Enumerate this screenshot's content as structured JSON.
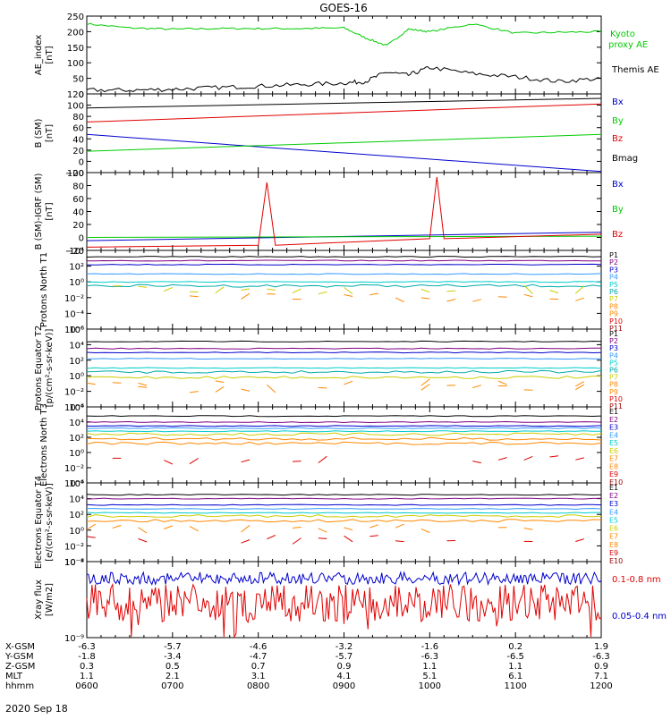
{
  "title": "GOES-16",
  "date_label": "2020 Sep 18",
  "colors": {
    "black": "#000000",
    "red": "#e00000",
    "green": "#00cc00",
    "blue": "#0000cc",
    "cyan": "#00cccc",
    "yellow": "#cccc00",
    "orange": "#ff8800",
    "purple": "#800080",
    "darkred": "#990000",
    "lightblue": "#3399ff",
    "teal": "#00aaaa"
  },
  "xaxis": {
    "rows": [
      {
        "label": "X-GSM",
        "values": [
          "-6.3",
          "-5.7",
          "-4.6",
          "-3.2",
          "-1.6",
          "0.2",
          "1.9"
        ]
      },
      {
        "label": "Y-GSM",
        "values": [
          "-1.8",
          "-3.4",
          "-4.7",
          "-5.7",
          "-6.3",
          "-6.5",
          "-6.3"
        ]
      },
      {
        "label": "Z-GSM",
        "values": [
          "0.3",
          "0.5",
          "0.7",
          "0.9",
          "1.1",
          "1.1",
          "0.9"
        ]
      },
      {
        "label": "MLT",
        "values": [
          "1.1",
          "2.1",
          "3.1",
          "4.1",
          "5.1",
          "6.1",
          "7.1"
        ]
      },
      {
        "label": "hhmm",
        "values": [
          "0600",
          "0700",
          "0800",
          "0900",
          "1000",
          "1100",
          "1200"
        ]
      }
    ]
  },
  "chart_data": [
    {
      "type": "line",
      "ylabel": "AE_index [nT]",
      "ylim": [
        0,
        250
      ],
      "yticks": [
        "0",
        "50",
        "100",
        "150",
        "200",
        "250"
      ],
      "x_range": [
        "0600",
        "1200"
      ],
      "series": [
        {
          "name": "Kyoto proxy AE",
          "color": "#00cc00",
          "x": [
            "0600",
            "0630",
            "0700",
            "0730",
            "0800",
            "0830",
            "0900",
            "0915",
            "0930",
            "0945",
            "1000",
            "1030",
            "1100",
            "1130",
            "1200"
          ],
          "values": [
            225,
            212,
            208,
            210,
            210,
            210,
            212,
            180,
            155,
            208,
            200,
            225,
            195,
            198,
            200
          ]
        },
        {
          "name": "Themis AE",
          "color": "#000000",
          "x": [
            "0600",
            "0630",
            "0700",
            "0730",
            "0800",
            "0830",
            "0900",
            "0915",
            "0930",
            "0945",
            "1000",
            "1030",
            "1100",
            "1130",
            "1200"
          ],
          "values": [
            12,
            12,
            15,
            20,
            25,
            30,
            35,
            40,
            70,
            60,
            85,
            65,
            55,
            40,
            50
          ]
        }
      ]
    },
    {
      "type": "line",
      "ylabel": "B (SM) [nT]",
      "ylim": [
        -20,
        120
      ],
      "yticks": [
        "−20",
        "0",
        "20",
        "40",
        "60",
        "80",
        "100",
        "120"
      ],
      "series": [
        {
          "name": "Bx",
          "color": "#0000cc",
          "x": [
            "0600",
            "1200"
          ],
          "values": [
            48,
            -18
          ]
        },
        {
          "name": "By",
          "color": "#00cc00",
          "x": [
            "0600",
            "1200"
          ],
          "values": [
            18,
            48
          ]
        },
        {
          "name": "Bz",
          "color": "#e00000",
          "x": [
            "0600",
            "1200"
          ],
          "values": [
            70,
            102
          ]
        },
        {
          "name": "Bmag",
          "color": "#000000",
          "x": [
            "0600",
            "1200"
          ],
          "values": [
            95,
            112
          ]
        }
      ]
    },
    {
      "type": "line",
      "ylabel": "B (SM)-IGRF (SM) [nT]",
      "ylim": [
        -20,
        100
      ],
      "yticks": [
        "−20",
        "0",
        "20",
        "40",
        "60",
        "80",
        "100"
      ],
      "series": [
        {
          "name": "Bx",
          "color": "#0000cc",
          "x": [
            "0600",
            "1200"
          ],
          "values": [
            -5,
            8
          ]
        },
        {
          "name": "By",
          "color": "#00cc00",
          "x": [
            "0600",
            "1200"
          ],
          "values": [
            0,
            2
          ]
        },
        {
          "name": "Bz",
          "color": "#e00000",
          "x": [
            "0600",
            "0800",
            "0806",
            "0812",
            "1000",
            "1005",
            "1010",
            "1200"
          ],
          "values": [
            -15,
            -12,
            85,
            -12,
            -2,
            93,
            -2,
            5
          ]
        }
      ]
    },
    {
      "type": "line",
      "ylabel": "Protons North T1",
      "yscale": "log",
      "yticks": [
        "10⁻⁶",
        "10⁻⁴",
        "10⁻²",
        "10⁰",
        "10²",
        "10⁴"
      ],
      "legend": [
        "P1",
        "P2",
        "P3",
        "P4",
        "P5",
        "P6",
        "P7",
        "P8",
        "P9",
        "P10",
        "P11"
      ]
    },
    {
      "type": "line",
      "ylabel": "Protons Equator T2 [p/(cm²-s-sr-keV)]",
      "yscale": "log",
      "yticks": [
        "10⁻⁴",
        "10⁻²",
        "10⁰",
        "10²",
        "10⁴",
        "10⁶"
      ],
      "legend": [
        "P1",
        "P2",
        "P3",
        "P4",
        "P5",
        "P6",
        "P7",
        "P8",
        "P9",
        "P10",
        "P11"
      ]
    },
    {
      "type": "line",
      "ylabel": "Electrons North T3",
      "yscale": "log",
      "yticks": [
        "10⁻⁴",
        "10⁻²",
        "10⁰",
        "10²",
        "10⁴",
        "10⁶"
      ],
      "legend": [
        "E1",
        "E2",
        "E3",
        "E4",
        "E5",
        "E6",
        "E7",
        "E8",
        "E9",
        "E10"
      ]
    },
    {
      "type": "line",
      "ylabel": "Electrons Equator T4 [e/(cm²-s-sr-keV)]",
      "yscale": "log",
      "yticks": [
        "10⁻⁴",
        "10⁻²",
        "10⁰",
        "10²",
        "10⁴",
        "10⁶"
      ],
      "legend": [
        "E1",
        "E2",
        "E3",
        "E4",
        "E5",
        "E6",
        "E7",
        "E8",
        "E9",
        "E10"
      ]
    },
    {
      "type": "line",
      "ylabel": "Xray flux [W/m2]",
      "yscale": "log",
      "yticks": [
        "10⁻⁹",
        "10⁻⁸"
      ],
      "series": [
        {
          "name": "0.1-0.8 nm",
          "color": "#e00000"
        },
        {
          "name": "0.05-0.4 nm",
          "color": "#0000cc"
        }
      ]
    }
  ],
  "legend_colors": {
    "P": [
      "#000000",
      "#800080",
      "#0000cc",
      "#3399ff",
      "#00cccc",
      "#00aaaa",
      "#cccc00",
      "#ff8800",
      "#ff8800",
      "#e00000",
      "#990000"
    ],
    "E": [
      "#000000",
      "#800080",
      "#0000cc",
      "#3399ff",
      "#00cccc",
      "#cccc00",
      "#ff8800",
      "#ff8800",
      "#e00000",
      "#990000"
    ]
  }
}
